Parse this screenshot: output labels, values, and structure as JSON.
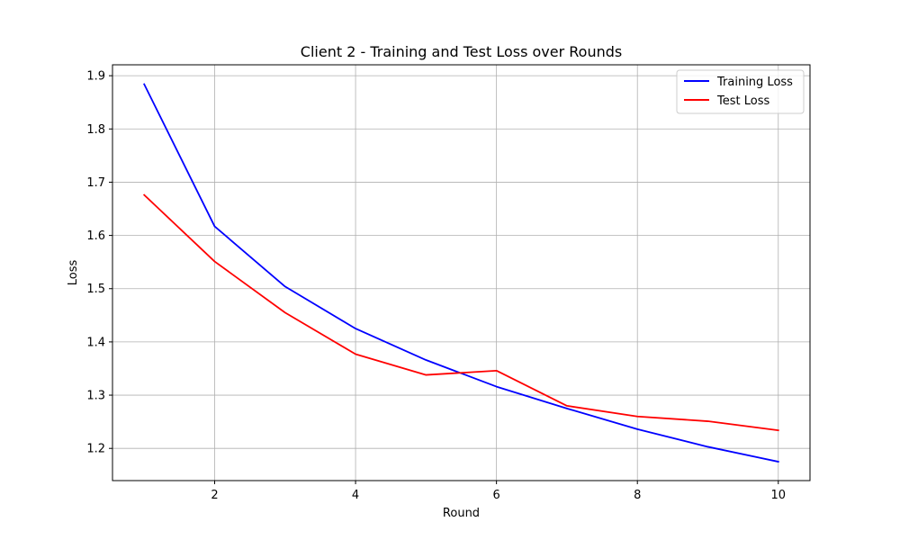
{
  "chart_data": {
    "type": "line",
    "title": "Client 2 - Training and Test Loss over Rounds",
    "xlabel": "Round",
    "ylabel": "Loss",
    "x": [
      1,
      2,
      3,
      4,
      5,
      6,
      7,
      8,
      9,
      10
    ],
    "xlim": [
      0.55,
      10.45
    ],
    "ylim": [
      1.1395,
      1.9205
    ],
    "xticks": [
      2,
      4,
      6,
      8,
      10
    ],
    "yticks": [
      1.2,
      1.3,
      1.4,
      1.5,
      1.6,
      1.7,
      1.8,
      1.9
    ],
    "xtick_labels": [
      "2",
      "4",
      "6",
      "8",
      "10"
    ],
    "ytick_labels": [
      "1.2",
      "1.3",
      "1.4",
      "1.5",
      "1.6",
      "1.7",
      "1.8",
      "1.9"
    ],
    "grid": true,
    "legend_position": "top-right",
    "series": [
      {
        "name": "Training Loss",
        "color": "#0000ff",
        "values": [
          1.884,
          1.617,
          1.504,
          1.425,
          1.366,
          1.316,
          1.275,
          1.236,
          1.203,
          1.175
        ]
      },
      {
        "name": "Test Loss",
        "color": "#ff0000",
        "values": [
          1.676,
          1.551,
          1.455,
          1.377,
          1.338,
          1.346,
          1.28,
          1.26,
          1.251,
          1.234
        ]
      }
    ]
  }
}
